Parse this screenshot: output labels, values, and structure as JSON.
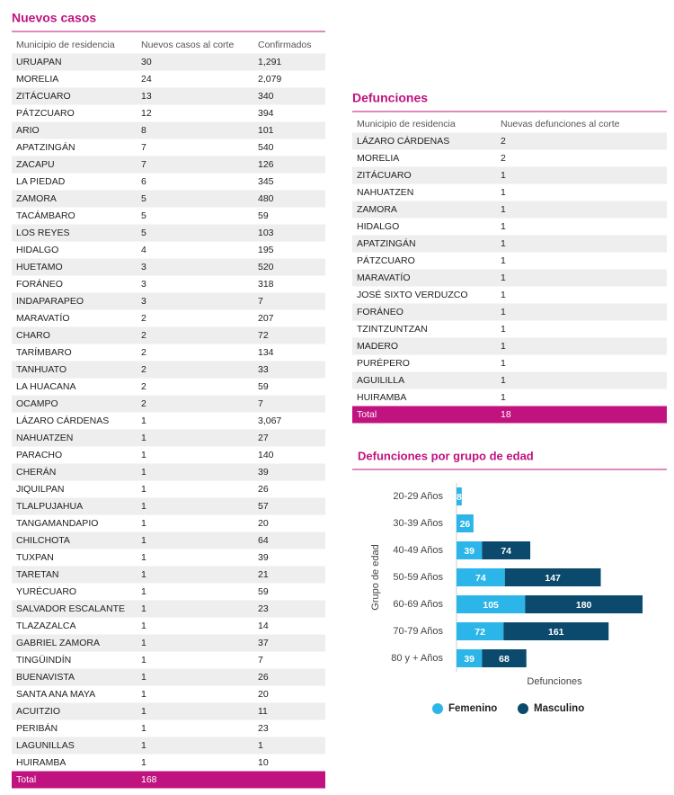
{
  "nuevos_casos": {
    "title": "Nuevos casos",
    "header": [
      "Municipio de residencia",
      "Nuevos casos al corte",
      "Confirmados"
    ],
    "rows": [
      [
        "URUAPAN",
        "30",
        "1,291"
      ],
      [
        "MORELIA",
        "24",
        "2,079"
      ],
      [
        "ZITÁCUARO",
        "13",
        "340"
      ],
      [
        "PÁTZCUARO",
        "12",
        "394"
      ],
      [
        "ARIO",
        "8",
        "101"
      ],
      [
        "APATZINGÁN",
        "7",
        "540"
      ],
      [
        "ZACAPU",
        "7",
        "126"
      ],
      [
        "LA PIEDAD",
        "6",
        "345"
      ],
      [
        "ZAMORA",
        "5",
        "480"
      ],
      [
        "TACÁMBARO",
        "5",
        "59"
      ],
      [
        "LOS REYES",
        "5",
        "103"
      ],
      [
        "HIDALGO",
        "4",
        "195"
      ],
      [
        "HUETAMO",
        "3",
        "520"
      ],
      [
        "FORÁNEO",
        "3",
        "318"
      ],
      [
        "INDAPARAPEO",
        "3",
        "7"
      ],
      [
        "MARAVATÍO",
        "2",
        "207"
      ],
      [
        "CHARO",
        "2",
        "72"
      ],
      [
        "TARÍMBARO",
        "2",
        "134"
      ],
      [
        "TANHUATO",
        "2",
        "33"
      ],
      [
        "LA HUACANA",
        "2",
        "59"
      ],
      [
        "OCAMPO",
        "2",
        "7"
      ],
      [
        "LÁZARO CÁRDENAS",
        "1",
        "3,067"
      ],
      [
        "NAHUATZEN",
        "1",
        "27"
      ],
      [
        "PARACHO",
        "1",
        "140"
      ],
      [
        "CHERÁN",
        "1",
        "39"
      ],
      [
        "JIQUILPAN",
        "1",
        "26"
      ],
      [
        "TLALPUJAHUA",
        "1",
        "57"
      ],
      [
        "TANGAMANDAPIO",
        "1",
        "20"
      ],
      [
        "CHILCHOTA",
        "1",
        "64"
      ],
      [
        "TUXPAN",
        "1",
        "39"
      ],
      [
        "TARETAN",
        "1",
        "21"
      ],
      [
        "YURÉCUARO",
        "1",
        "59"
      ],
      [
        "SALVADOR ESCALANTE",
        "1",
        "23"
      ],
      [
        "TLAZAZALCA",
        "1",
        "14"
      ],
      [
        "GABRIEL ZAMORA",
        "1",
        "37"
      ],
      [
        "TINGÜINDÍN",
        "1",
        "7"
      ],
      [
        "BUENAVISTA",
        "1",
        "26"
      ],
      [
        "SANTA ANA MAYA",
        "1",
        "20"
      ],
      [
        "ACUITZIO",
        "1",
        "11"
      ],
      [
        "PERIBÁN",
        "1",
        "23"
      ],
      [
        "LAGUNILLAS",
        "1",
        "1"
      ],
      [
        "HUIRAMBA",
        "1",
        "10"
      ]
    ],
    "total": [
      "Total",
      "168"
    ]
  },
  "defunciones": {
    "title": "Defunciones",
    "header": [
      "Municipio de residencia",
      "Nuevas defunciones al corte"
    ],
    "rows": [
      [
        "LÁZARO CÁRDENAS",
        "2"
      ],
      [
        "MORELIA",
        "2"
      ],
      [
        "ZITÁCUARO",
        "1"
      ],
      [
        "NAHUATZEN",
        "1"
      ],
      [
        "ZAMORA",
        "1"
      ],
      [
        "HIDALGO",
        "1"
      ],
      [
        "APATZINGÁN",
        "1"
      ],
      [
        "PÁTZCUARO",
        "1"
      ],
      [
        "MARAVATÍO",
        "1"
      ],
      [
        "JOSÉ SIXTO VERDUZCO",
        "1"
      ],
      [
        "FORÁNEO",
        "1"
      ],
      [
        "TZINTZUNTZAN",
        "1"
      ],
      [
        "MADERO",
        "1"
      ],
      [
        "PURÉPERO",
        "1"
      ],
      [
        "AGUILILLA",
        "1"
      ],
      [
        "HUIRAMBA",
        "1"
      ]
    ],
    "total": [
      "Total",
      "18"
    ]
  },
  "chart_data": {
    "type": "bar",
    "orientation": "horizontal",
    "stacked": true,
    "title": "Defunciones por grupo de edad",
    "x_label": "Defunciones",
    "y_label": "Grupo de edad",
    "categories": [
      "20-29 Años",
      "30-39 Años",
      "40-49 Años",
      "50-59 Años",
      "60-69 Años",
      "70-79 Años",
      "80 y + Años"
    ],
    "series": [
      {
        "name": "Femenino",
        "color": "#2bb5e8",
        "values": [
          8,
          26,
          39,
          74,
          105,
          72,
          39
        ]
      },
      {
        "name": "Masculino",
        "color": "#0b4a6c",
        "values": [
          null,
          null,
          74,
          147,
          180,
          161,
          68
        ]
      }
    ],
    "xlim": [
      0,
      300
    ]
  }
}
